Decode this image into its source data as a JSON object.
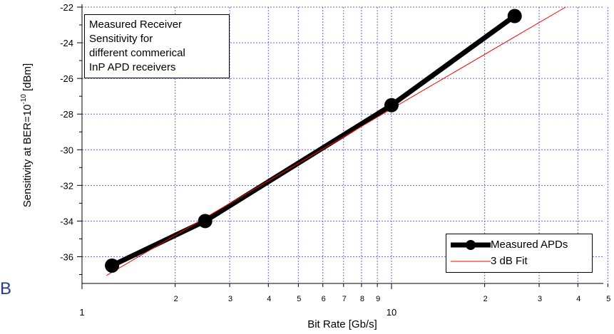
{
  "chart_data": {
    "type": "line",
    "xscale": "log",
    "xlim": [
      1,
      50
    ],
    "ylim": [
      -37.5,
      -22
    ],
    "yticks": [
      -36,
      -34,
      -32,
      -30,
      -28,
      -26,
      -24,
      -22
    ],
    "x_major_ticks": [
      1,
      10
    ],
    "x_minor_labels": [
      "2",
      "3",
      "4",
      "5",
      "6",
      "7",
      "8",
      "9",
      "2",
      "3",
      "4",
      "5"
    ],
    "xlabel": "Bit Rate [Gb/s]",
    "ylabel": "Sensitivity at BER=10",
    "ylabel_exponent": "-10",
    "ylabel_unit": "[dBm]",
    "grid": true,
    "grid_color": "#6666dd",
    "series": [
      {
        "name": "Measured APDs",
        "color": "#000000",
        "x": [
          1.25,
          2.5,
          10,
          25
        ],
        "y": [
          -36.5,
          -34,
          -27.5,
          -22.5
        ]
      },
      {
        "name": "3 dB Fit",
        "color": "#ff0000",
        "x": [
          1.2,
          36.5
        ],
        "y": [
          -37.05,
          -22
        ]
      }
    ],
    "annotation": [
      "Measured Receiver",
      "Sensitivity for",
      "different commerical",
      "InP APD receivers"
    ],
    "legend_position": "bottom-right"
  },
  "edge_fragment": "B"
}
